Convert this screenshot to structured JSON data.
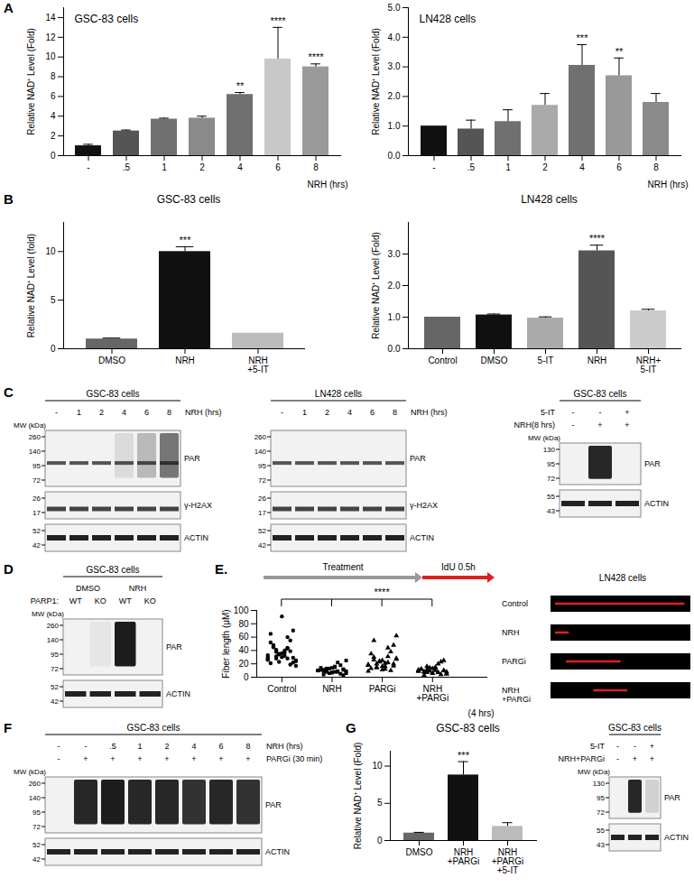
{
  "panel_labels": [
    "A",
    "B",
    "C",
    "D",
    "E.",
    "F",
    "G"
  ],
  "chart_data": [
    {
      "type": "bar",
      "title": "GSC-83 cells",
      "categories": [
        "-",
        ".5",
        "1",
        "2",
        "4",
        "6",
        "8"
      ],
      "values": [
        1,
        2.5,
        3.7,
        3.8,
        6.2,
        9.8,
        9.0
      ],
      "errors": [
        0.15,
        0.1,
        0.1,
        0.2,
        0.2,
        3.2,
        0.3
      ],
      "significance": [
        null,
        null,
        null,
        null,
        "**",
        "****",
        "****"
      ],
      "colors": [
        "#111111",
        "#555555",
        "#707070",
        "#8a8a8a",
        "#707070",
        "#c8c8c8",
        "#9a9a9a"
      ],
      "x_label": "NRH (hrs)",
      "y_label": "Relative NAD⁺ Level (Fold)",
      "ylim": [
        0,
        15
      ],
      "yticks": [
        0,
        2,
        4,
        6,
        8,
        10,
        12,
        14
      ]
    },
    {
      "type": "bar",
      "title": "LN428 cells",
      "categories": [
        "-",
        ".5",
        "1",
        "2",
        "4",
        "6",
        "8"
      ],
      "values": [
        1,
        0.9,
        1.15,
        1.7,
        3.05,
        2.7,
        1.8
      ],
      "errors": [
        0,
        0.3,
        0.4,
        0.4,
        0.7,
        0.6,
        0.3
      ],
      "significance": [
        null,
        null,
        null,
        null,
        "***",
        "**",
        null
      ],
      "colors": [
        "#111111",
        "#555555",
        "#707070",
        "#aaaaaa",
        "#707070",
        "#999999",
        "#8a8a8a"
      ],
      "x_label": "NRH (hrs)",
      "y_label": "Relative NAD⁺ Level (Fold)",
      "ylim": [
        0,
        5
      ],
      "yticks": [
        0,
        1,
        2,
        3,
        4,
        5
      ]
    },
    {
      "type": "bar",
      "title": "GSC-83 cells",
      "categories": [
        "DMSO",
        "NRH",
        "NRH\n+5-IT"
      ],
      "values": [
        1,
        10,
        1.6
      ],
      "errors": [
        0.1,
        0.5,
        0
      ],
      "significance": [
        null,
        "***",
        null
      ],
      "colors": [
        "#666666",
        "#111111",
        "#bbbbbb"
      ],
      "y_label": "Relative NAD⁺ Level (fold)",
      "ylim": [
        0,
        13
      ],
      "yticks": [
        0,
        5,
        10
      ]
    },
    {
      "type": "bar",
      "title": "LN428 cells",
      "categories": [
        "Control",
        "DMSO",
        "5-IT",
        "NRH",
        "NRH+\n5-IT"
      ],
      "values": [
        1,
        1.07,
        0.97,
        3.1,
        1.2
      ],
      "errors": [
        0,
        0.03,
        0.04,
        0.18,
        0.05
      ],
      "significance": [
        null,
        null,
        null,
        "****",
        null
      ],
      "colors": [
        "#666666",
        "#111111",
        "#aaaaaa",
        "#555555",
        "#cccccc"
      ],
      "y_label": "Relative NAD⁺ Level (Fold)",
      "ylim": [
        0,
        4
      ],
      "yticks": [
        0,
        1,
        2,
        3
      ]
    },
    {
      "type": "scatter",
      "x_label": "(4 hrs)",
      "y_label": "Fiber length (μM)",
      "ylim": [
        0,
        100
      ],
      "yticks": [
        0,
        20,
        40,
        60,
        80,
        100
      ],
      "significance": "****",
      "series": [
        {
          "name": "Control",
          "marker": "circle",
          "values": [
            33,
            28,
            41,
            25,
            37,
            45,
            22,
            30,
            52,
            19,
            35,
            27,
            60,
            31,
            24,
            40,
            48,
            29,
            36,
            21,
            55,
            34,
            26,
            43,
            38,
            17,
            32,
            47,
            70,
            91,
            65,
            39,
            23,
            30,
            44,
            28
          ]
        },
        {
          "name": "NRH",
          "marker": "square",
          "values": [
            10,
            8,
            12,
            6,
            15,
            9,
            11,
            7,
            14,
            5,
            13,
            10,
            22,
            8,
            9,
            16,
            4,
            12,
            7,
            11,
            18,
            6,
            10,
            9,
            13,
            25,
            8,
            11,
            3,
            14
          ]
        },
        {
          "name": "PARGi",
          "marker": "triangle",
          "values": [
            18,
            22,
            15,
            27,
            12,
            30,
            20,
            16,
            35,
            10,
            24,
            19,
            44,
            14,
            28,
            21,
            55,
            17,
            25,
            13,
            38,
            23,
            9,
            31,
            20,
            62,
            16,
            26,
            48,
            11
          ]
        },
        {
          "name": "NRH\n+PARGi",
          "marker": "triangle",
          "values": [
            9,
            7,
            11,
            5,
            13,
            8,
            10,
            6,
            12,
            4,
            14,
            9,
            20,
            7,
            8,
            15,
            3,
            10,
            6,
            12,
            23,
            9,
            11,
            7,
            16,
            5,
            10,
            8,
            25,
            13
          ]
        }
      ]
    },
    {
      "type": "bar",
      "title": "GSC-83 cells",
      "categories": [
        "DMSO",
        "NRH\n+PARGi",
        "NRH\n+PARGi\n+5-IT"
      ],
      "values": [
        1,
        8.8,
        1.9
      ],
      "errors": [
        0.1,
        1.8,
        0.5
      ],
      "significance": [
        null,
        "***",
        null
      ],
      "colors": [
        "#666666",
        "#111111",
        "#bbbbbb"
      ],
      "y_label": "Relative NAD⁺ Level (Fold)",
      "ylim": [
        0,
        12
      ],
      "yticks": [
        0,
        5,
        10
      ]
    }
  ],
  "blots": [
    {
      "title": "GSC-83 cells",
      "header_rows": [
        {
          "label": "NRH (hrs)",
          "cells": [
            "-",
            "1",
            "2",
            "4",
            "6",
            "8"
          ]
        }
      ],
      "mw_label": "MW (kDa)",
      "rows": [
        {
          "name": "PAR",
          "mw": [
            260,
            140,
            95,
            72
          ]
        },
        {
          "name": "γ-H2AX",
          "mw": [
            26,
            17
          ]
        },
        {
          "name": "ACTIN",
          "mw": [
            52,
            42
          ]
        }
      ]
    },
    {
      "title": "LN428 cells",
      "header_rows": [
        {
          "label": "NRH (hrs)",
          "cells": [
            "-",
            "1",
            "2",
            "4",
            "6",
            "8"
          ]
        }
      ],
      "rows": [
        {
          "name": "PAR",
          "mw": [
            260,
            140,
            95,
            72
          ]
        },
        {
          "name": "γ-H2AX",
          "mw": [
            26,
            17
          ]
        },
        {
          "name": "ACTIN",
          "mw": [
            52,
            42
          ]
        }
      ]
    },
    {
      "title": "GSC-83 cells",
      "header_rows": [
        {
          "label": "5-IT",
          "cells": [
            "-",
            "-",
            "+"
          ]
        },
        {
          "label": "NRH(8 hrs)",
          "cells": [
            "-",
            "+",
            "+"
          ]
        }
      ],
      "mw_label": "MW (kDa)",
      "rows": [
        {
          "name": "PAR",
          "mw": [
            130,
            95,
            72
          ]
        },
        {
          "name": "ACTIN",
          "mw": [
            55,
            43
          ]
        }
      ]
    },
    {
      "title": "GSC-83 cells",
      "header_rows": [
        {
          "cells": [
            "DMSO",
            "NRH"
          ]
        },
        {
          "label": "PARP1:",
          "cells": [
            "WT",
            "KO",
            "WT",
            "KO"
          ]
        }
      ],
      "mw_label": "MW (kDa)",
      "rows": [
        {
          "name": "PAR",
          "mw": [
            260,
            140,
            95,
            72
          ]
        },
        {
          "name": "ACTIN",
          "mw": [
            52,
            42
          ]
        }
      ]
    },
    {
      "title": "GSC-83 cells",
      "header_rows": [
        {
          "label": "NRH (hrs)",
          "cells": [
            "-",
            "-",
            ".5",
            "1",
            "2",
            "4",
            "6",
            "8"
          ]
        },
        {
          "label": "PARGi (30 min)",
          "cells": [
            "-",
            "+",
            "+",
            "+",
            "+",
            "+",
            "+",
            "+"
          ]
        }
      ],
      "mw_label": "MW (kDa)",
      "rows": [
        {
          "name": "PAR",
          "mw": [
            260,
            140,
            95,
            72
          ]
        },
        {
          "name": "ACTIN",
          "mw": [
            52,
            42
          ]
        }
      ]
    },
    {
      "title": "GSC-83 cells",
      "header_rows": [
        {
          "label": "5-IT",
          "cells": [
            "-",
            "-",
            "+"
          ]
        },
        {
          "label": "NRH+PARGi",
          "cells": [
            "-",
            "+",
            "+"
          ]
        }
      ],
      "mw_label": "MW (kDa)",
      "rows": [
        {
          "name": "PAR",
          "mw": [
            130,
            95,
            72
          ]
        },
        {
          "name": "ACTIN",
          "mw": [
            55,
            43
          ]
        }
      ]
    }
  ],
  "scheme": {
    "steps": [
      "Treatment",
      "IdU 0.5h"
    ]
  },
  "fiber_images": {
    "title": "LN428 cells",
    "labels": [
      "Control",
      "NRH",
      "PARGi",
      "NRH\n+PARGi"
    ]
  }
}
